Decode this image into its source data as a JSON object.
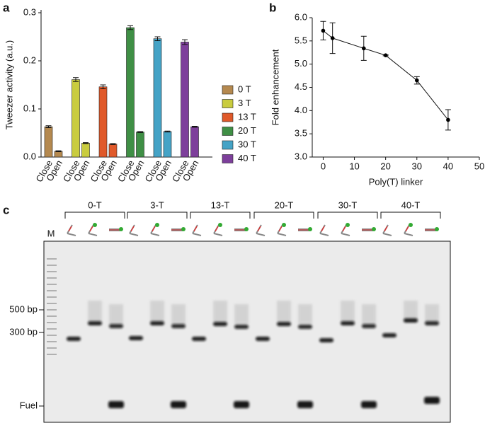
{
  "chart_data": [
    {
      "type": "bar",
      "panel_label": "a",
      "y_label": "Tweezer activity (a.u.)",
      "categories": [
        "Close",
        "Open"
      ],
      "series": [
        {
          "name": "0 T",
          "color": "#b5894f",
          "values": [
            0.063,
            0.012
          ],
          "errors": [
            0.002,
            0.001
          ]
        },
        {
          "name": "3 T",
          "color": "#c9cc3f",
          "values": [
            0.161,
            0.029
          ],
          "errors": [
            0.004,
            0.001
          ]
        },
        {
          "name": "13 T",
          "color": "#e0592a",
          "values": [
            0.146,
            0.027
          ],
          "errors": [
            0.004,
            0.001
          ]
        },
        {
          "name": "20 T",
          "color": "#3f8f45",
          "values": [
            0.269,
            0.052
          ],
          "errors": [
            0.004,
            0.001
          ]
        },
        {
          "name": "30 T",
          "color": "#45a3c6",
          "values": [
            0.246,
            0.053
          ],
          "errors": [
            0.004,
            0.001
          ]
        },
        {
          "name": "40 T",
          "color": "#7d3f9b",
          "values": [
            0.239,
            0.063
          ],
          "errors": [
            0.005,
            0.001
          ]
        }
      ],
      "ylim": [
        0,
        0.3
      ],
      "yticks": [
        {
          "value": 0,
          "label": "0.0"
        },
        0.1,
        0.2,
        0.3
      ]
    },
    {
      "type": "line",
      "panel_label": "b",
      "x_label": "Poly(T) linker",
      "y_label": "Fold enhancement",
      "x": [
        0,
        3,
        13,
        20,
        30,
        40
      ],
      "values": [
        5.72,
        5.56,
        5.34,
        5.19,
        4.65,
        3.8
      ],
      "errors": [
        0.2,
        0.33,
        0.26,
        0.01,
        0.08,
        0.22
      ],
      "color": "#000000",
      "xlim": [
        -3.5,
        50
      ],
      "xticks": [
        0,
        10,
        20,
        30,
        40,
        50
      ],
      "ylim": [
        3,
        6
      ],
      "yticks": [
        {
          "value": 3,
          "label": "3.0"
        },
        3.5,
        {
          "value": 4,
          "label": "4.0"
        },
        4.5,
        {
          "value": 5,
          "label": "5.0"
        },
        5.5,
        {
          "value": 6,
          "label": "6.0"
        }
      ]
    }
  ],
  "gel": {
    "panel_label": "c",
    "groups": [
      "0-T",
      "3-T",
      "13-T",
      "20-T",
      "30-T",
      "40-T"
    ],
    "marker_lane": "M",
    "markers": [
      "500 bp",
      "300 bp",
      "Fuel"
    ]
  }
}
